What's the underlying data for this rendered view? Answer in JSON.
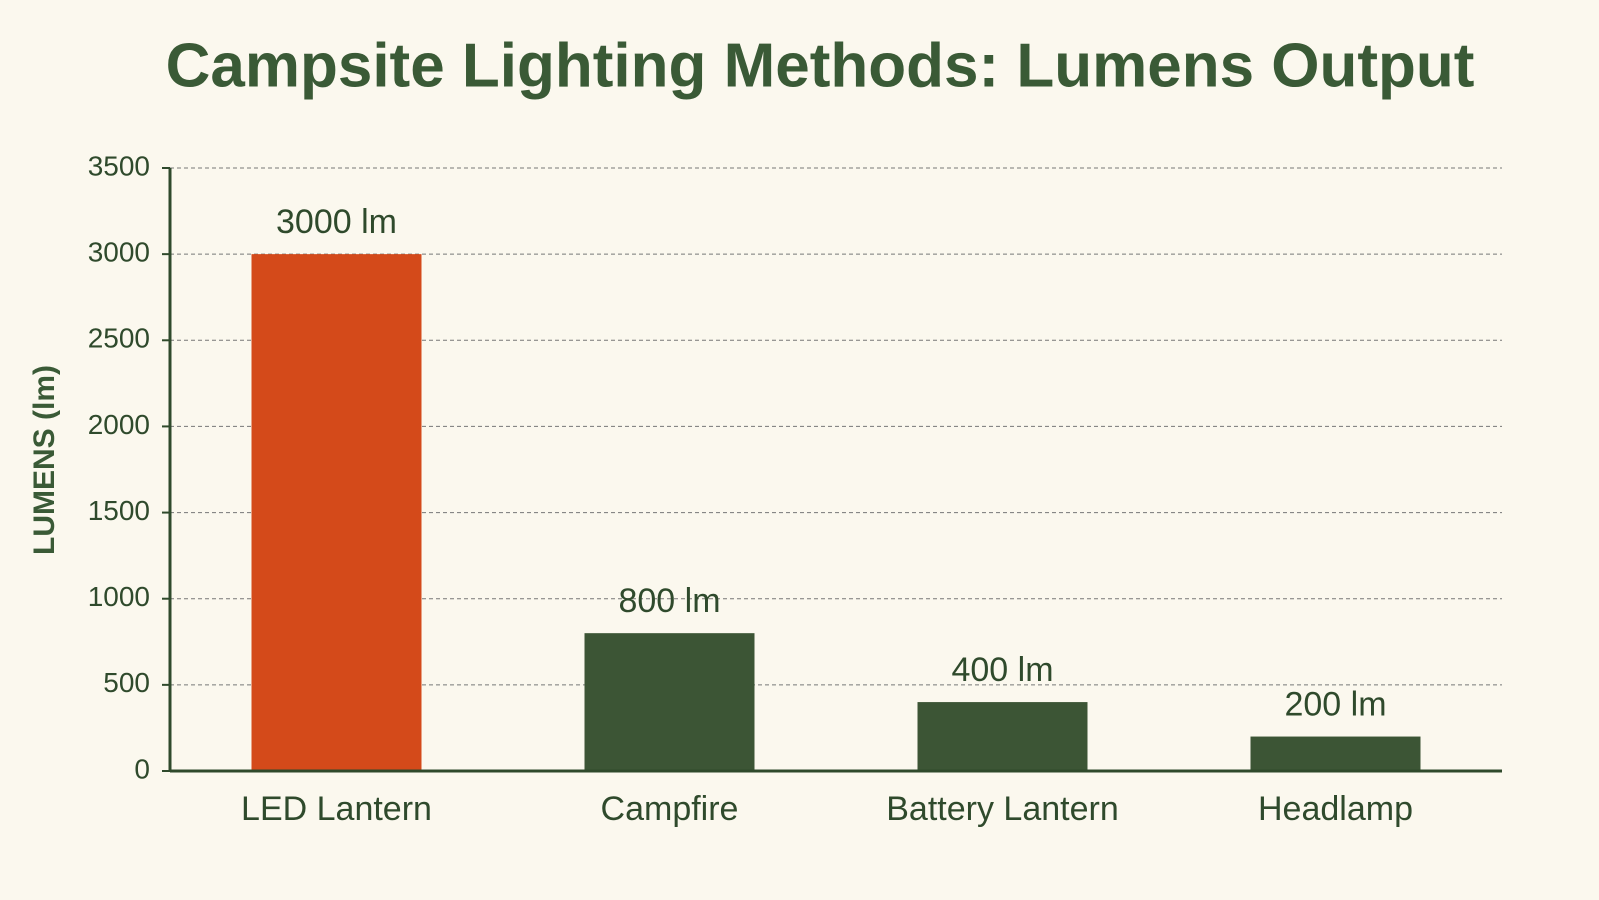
{
  "chart_data": {
    "type": "bar",
    "title": "Campsite Lighting Methods: Lumens Output",
    "y_label": "LUMENS (lm)",
    "categories": [
      "LED Lantern",
      "Campfire",
      "Battery Lantern",
      "Headlamp"
    ],
    "values": [
      3000,
      800,
      400,
      200
    ],
    "value_labels": [
      "3000 lm",
      "800 lm",
      "400 lm",
      "200 lm"
    ],
    "colors": [
      "#d44a1a",
      "#3c5535",
      "#3c5535",
      "#3c5535"
    ],
    "ylim": [
      0,
      3500
    ],
    "yticks": [
      0,
      500,
      1000,
      1500,
      2000,
      2500,
      3000,
      3500
    ],
    "grid": true
  }
}
